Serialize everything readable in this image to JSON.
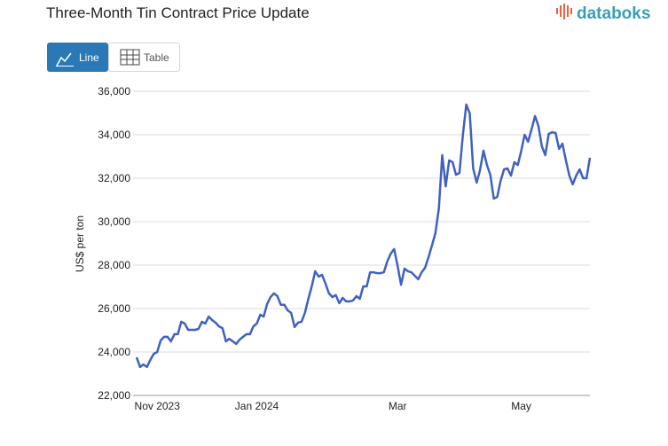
{
  "header": {
    "title": "Three-Month Tin Contract Price Update",
    "logo": "databoks"
  },
  "view_buttons": [
    "Line",
    "Table"
  ],
  "chart_data": {
    "type": "line",
    "y_label": "US$ per ton",
    "categories": [
      null,
      null,
      null,
      null,
      null,
      null,
      "Nov 2023",
      null,
      null,
      null,
      null,
      null,
      null,
      null,
      null,
      null,
      null,
      null,
      null,
      null,
      null,
      null,
      null,
      null,
      null,
      null,
      null,
      null,
      null,
      null,
      null,
      null,
      null,
      null,
      null,
      "Jan 2024",
      null,
      null,
      null,
      null,
      null,
      null,
      null,
      null,
      null,
      null,
      null,
      null,
      null,
      null,
      null,
      null,
      null,
      null,
      null,
      null,
      null,
      null,
      null,
      null,
      null,
      null,
      null,
      null,
      null,
      null,
      null,
      null,
      null,
      null,
      null,
      null,
      null,
      null,
      null,
      null,
      "Mar",
      null,
      null,
      null,
      null,
      null,
      null,
      null,
      null,
      null,
      null,
      null,
      null,
      null,
      null,
      null,
      null,
      null,
      null,
      null,
      null,
      null,
      null,
      null,
      null,
      null,
      null,
      null,
      null,
      null,
      null,
      null,
      null,
      null,
      null,
      null,
      "May",
      null,
      null,
      null,
      null,
      null,
      null,
      null,
      null,
      null,
      null,
      null,
      null,
      null,
      null,
      null,
      null,
      null,
      null,
      null,
      null
    ],
    "series": [
      {
        "color": "#4061bf",
        "values": [
          23760,
          23310,
          23430,
          23310,
          23640,
          23920,
          24000,
          24530,
          24700,
          24700,
          24490,
          24820,
          24820,
          25390,
          25310,
          25020,
          25020,
          25020,
          25060,
          25390,
          25310,
          25630,
          25470,
          25350,
          25180,
          25100,
          24490,
          24610,
          24490,
          24370,
          24570,
          24700,
          24820,
          24820,
          25180,
          25310,
          25720,
          25630,
          26210,
          26530,
          26700,
          26570,
          26170,
          26170,
          25920,
          25800,
          25150,
          25350,
          25390,
          25800,
          26450,
          27020,
          27720,
          27470,
          27550,
          27150,
          26700,
          26530,
          26620,
          26250,
          26490,
          26330,
          26330,
          26370,
          26570,
          26450,
          27020,
          27020,
          27670,
          27670,
          27630,
          27630,
          27670,
          28170,
          28530,
          28740,
          27960,
          27100,
          27840,
          27720,
          27670,
          27510,
          27350,
          27670,
          27880,
          28370,
          28900,
          29470,
          30610,
          33060,
          31630,
          32820,
          32740,
          32160,
          32240,
          34000,
          35390,
          34980,
          32450,
          31800,
          32370,
          33270,
          32610,
          32160,
          31060,
          31140,
          31880,
          32410,
          32450,
          32120,
          32740,
          32610,
          33270,
          34000,
          33680,
          34250,
          34860,
          34410,
          33470,
          33060,
          34040,
          34120,
          34080,
          33350,
          33590,
          32820,
          32120,
          31720,
          32120,
          32410,
          32000,
          32000,
          32940
        ]
      }
    ],
    "ylim": [
      22000,
      36000
    ],
    "yticks": [
      {
        "value": 22000,
        "label": "22,000"
      },
      {
        "value": 24000,
        "label": "24,000"
      },
      {
        "value": 26000,
        "label": "26,000"
      },
      {
        "value": 28000,
        "label": "28,000"
      },
      {
        "value": 30000,
        "label": "30,000"
      },
      {
        "value": 32000,
        "label": "32,000"
      },
      {
        "value": 34000,
        "label": "34,000"
      },
      {
        "value": 36000,
        "label": "36,000"
      }
    ],
    "grid": true
  }
}
